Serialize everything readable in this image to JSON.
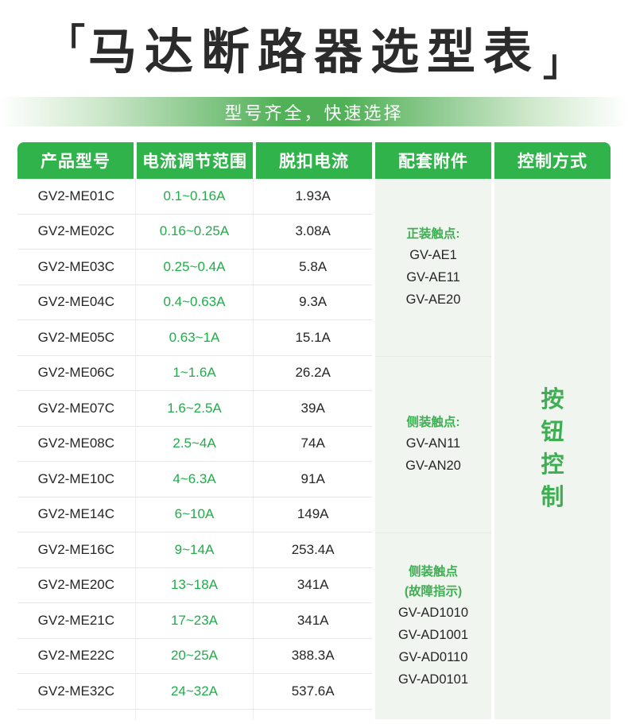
{
  "title": {
    "bracket_left": "「",
    "text": "马达断路器选型表",
    "bracket_right": "」"
  },
  "banner": {
    "text": "型号齐全，快速选择"
  },
  "colors": {
    "header_green": "#2fb34a",
    "range_text_green": "#21ac4a",
    "accessory_green": "#3eae52",
    "banner_green": "#50b156",
    "light_cell_bg": "#f1f5f0",
    "dark_text": "#262626"
  },
  "table": {
    "headers": [
      "产品型号",
      "电流调节范围",
      "脱扣电流",
      "配套附件",
      "控制方式"
    ],
    "rows": [
      {
        "model": "GV2-ME01C",
        "range": "0.1~0.16A",
        "trip": "1.93A"
      },
      {
        "model": "GV2-ME02C",
        "range": "0.16~0.25A",
        "trip": "3.08A"
      },
      {
        "model": "GV2-ME03C",
        "range": "0.25~0.4A",
        "trip": "5.8A"
      },
      {
        "model": "GV2-ME04C",
        "range": "0.4~0.63A",
        "trip": "9.3A"
      },
      {
        "model": "GV2-ME05C",
        "range": "0.63~1A",
        "trip": "15.1A"
      },
      {
        "model": "GV2-ME06C",
        "range": "1~1.6A",
        "trip": "26.2A"
      },
      {
        "model": "GV2-ME07C",
        "range": "1.6~2.5A",
        "trip": "39A"
      },
      {
        "model": "GV2-ME08C",
        "range": "2.5~4A",
        "trip": "74A"
      },
      {
        "model": "GV2-ME10C",
        "range": "4~6.3A",
        "trip": "91A"
      },
      {
        "model": "GV2-ME14C",
        "range": "6~10A",
        "trip": "149A"
      },
      {
        "model": "GV2-ME16C",
        "range": "9~14A",
        "trip": "253.4A"
      },
      {
        "model": "GV2-ME20C",
        "range": "13~18A",
        "trip": "341A"
      },
      {
        "model": "GV2-ME21C",
        "range": "17~23A",
        "trip": "341A"
      },
      {
        "model": "GV2-ME22C",
        "range": "20~25A",
        "trip": "388.3A"
      },
      {
        "model": "GV2-ME32C",
        "range": "24~32A",
        "trip": "537.6A"
      }
    ],
    "accessory_groups": [
      {
        "title_lines": [
          "正装触点:"
        ],
        "models": [
          "GV-AE1",
          "GV-AE11",
          "GV-AE20"
        ],
        "row_span": 5
      },
      {
        "title_lines": [
          "侧装触点:"
        ],
        "models": [
          "GV-AN11",
          "GV-AN20"
        ],
        "row_span": 5
      },
      {
        "title_lines": [
          "侧装触点",
          "(故障指示)"
        ],
        "models": [
          "GV-AD1010",
          "GV-AD1001",
          "GV-AD0110",
          "GV-AD0101"
        ],
        "row_span": 5
      }
    ],
    "control_method": {
      "label": "按钮控制",
      "chars": [
        "按",
        "钮",
        "控",
        "制"
      ]
    }
  }
}
